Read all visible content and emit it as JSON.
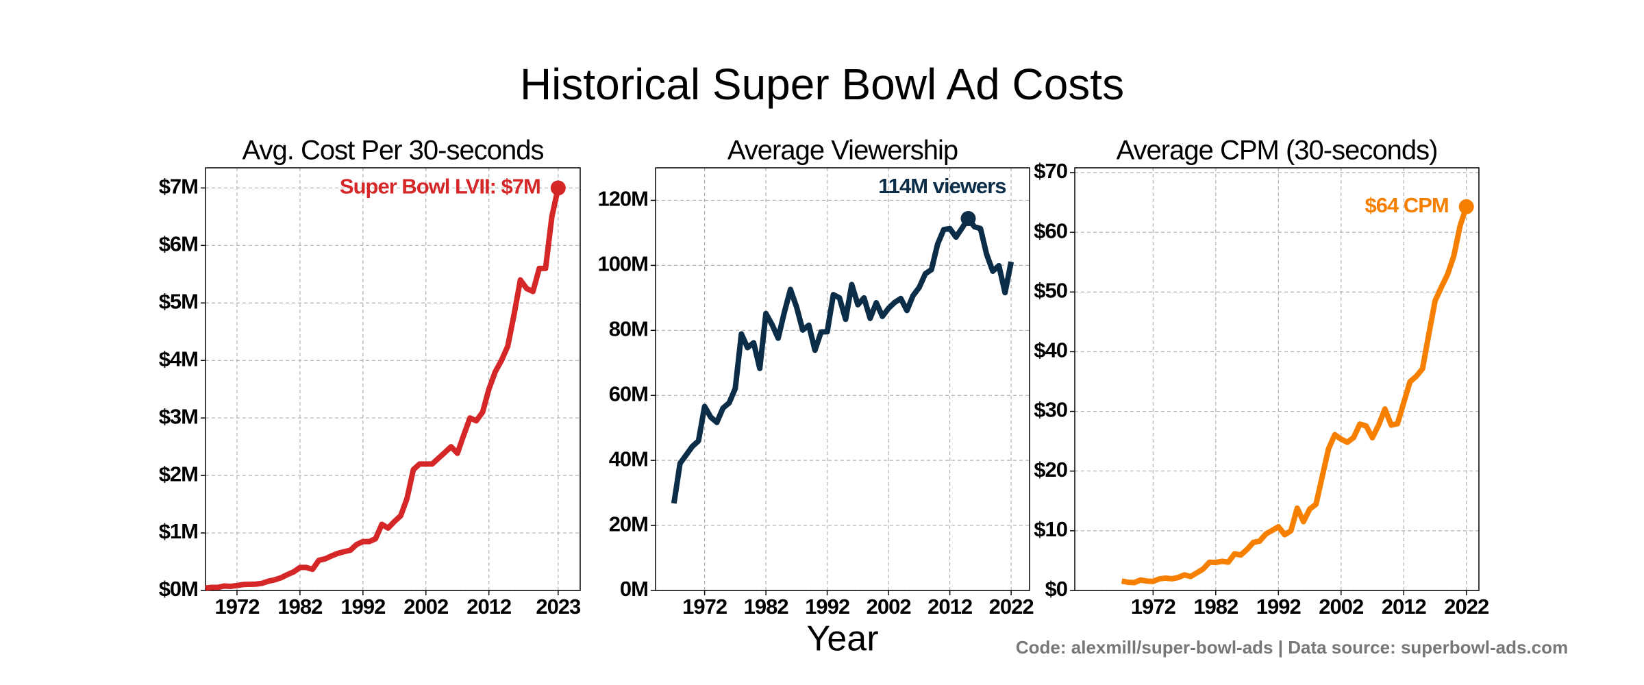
{
  "title": "Historical Super Bowl Ad Costs",
  "xlabel": "Year",
  "footer": "Code: alexmill/super-bowl-ads  |  Data source: superbowl-ads.com",
  "chart_data": [
    {
      "type": "line",
      "title": "Avg. Cost Per 30-seconds",
      "color": "#d62728",
      "grid": true,
      "x": [
        1967,
        1968,
        1969,
        1970,
        1971,
        1972,
        1973,
        1974,
        1975,
        1976,
        1977,
        1978,
        1979,
        1980,
        1981,
        1982,
        1983,
        1984,
        1985,
        1986,
        1987,
        1988,
        1989,
        1990,
        1991,
        1992,
        1993,
        1994,
        1995,
        1996,
        1997,
        1998,
        1999,
        2000,
        2001,
        2002,
        2003,
        2004,
        2005,
        2006,
        2007,
        2008,
        2009,
        2010,
        2011,
        2012,
        2013,
        2014,
        2015,
        2016,
        2017,
        2018,
        2019,
        2020,
        2021,
        2022,
        2023
      ],
      "values": [
        0.042,
        0.054,
        0.055,
        0.078,
        0.072,
        0.086,
        0.1035,
        0.107,
        0.11,
        0.125,
        0.162,
        0.185,
        0.222,
        0.275,
        0.324,
        0.4,
        0.4,
        0.368,
        0.525,
        0.55,
        0.6,
        0.645,
        0.675,
        0.7,
        0.8,
        0.85,
        0.85,
        0.9,
        1.15,
        1.085,
        1.2,
        1.3,
        1.6,
        2.1,
        2.2,
        2.2,
        2.2,
        2.3,
        2.4,
        2.5,
        2.385,
        2.7,
        3.0,
        2.95,
        3.1,
        3.5,
        3.8,
        4.0,
        4.25,
        4.8,
        5.4,
        5.25,
        5.2,
        5.6,
        5.6,
        6.5,
        7.0
      ],
      "xlim": [
        1967,
        2026.5
      ],
      "ylim": [
        0,
        7.35
      ],
      "xticks": [
        1972,
        1982,
        1992,
        2002,
        2012,
        2023
      ],
      "yticks": [
        {
          "value": 0,
          "label": "$0M"
        },
        {
          "value": 1,
          "label": "$1M"
        },
        {
          "value": 2,
          "label": "$2M"
        },
        {
          "value": 3,
          "label": "$3M"
        },
        {
          "value": 4,
          "label": "$4M"
        },
        {
          "value": 5,
          "label": "$5M"
        },
        {
          "value": 6,
          "label": "$6M"
        },
        {
          "value": 7,
          "label": "$7M"
        }
      ],
      "annotation": {
        "text": "Super Bowl LVII: $7M",
        "x": 2023,
        "y": 7.0
      }
    },
    {
      "type": "line",
      "title": "Average Viewership",
      "color": "#0b2d48",
      "grid": true,
      "x": [
        1967,
        1968,
        1969,
        1970,
        1971,
        1972,
        1973,
        1974,
        1975,
        1976,
        1977,
        1978,
        1979,
        1980,
        1981,
        1982,
        1983,
        1984,
        1985,
        1986,
        1987,
        1988,
        1989,
        1990,
        1991,
        1992,
        1993,
        1994,
        1995,
        1996,
        1997,
        1998,
        1999,
        2000,
        2001,
        2002,
        2003,
        2004,
        2005,
        2006,
        2007,
        2008,
        2009,
        2010,
        2011,
        2012,
        2013,
        2014,
        2015,
        2016,
        2017,
        2018,
        2019,
        2020,
        2021,
        2022
      ],
      "values": [
        26.8,
        39.1,
        41.7,
        44.3,
        46.0,
        56.6,
        53.3,
        51.7,
        56.1,
        57.7,
        62.1,
        78.9,
        74.7,
        76.2,
        68.3,
        85.2,
        81.8,
        77.6,
        85.5,
        92.6,
        87.2,
        80.1,
        81.6,
        73.9,
        79.5,
        79.6,
        91.0,
        90.0,
        83.4,
        94.1,
        87.9,
        90.0,
        83.7,
        88.5,
        84.3,
        86.8,
        88.6,
        89.8,
        86.1,
        90.7,
        93.2,
        97.4,
        98.7,
        106.5,
        111.0,
        111.3,
        108.7,
        111.5,
        114.4,
        111.9,
        111.3,
        103.4,
        98.2,
        99.9,
        91.6,
        101.1
      ],
      "xlim": [
        1964,
        2025
      ],
      "ylim": [
        0,
        130
      ],
      "xticks": [
        1972,
        1982,
        1992,
        2002,
        2012,
        2022
      ],
      "yticks": [
        {
          "value": 0,
          "label": "0M"
        },
        {
          "value": 20,
          "label": "20M"
        },
        {
          "value": 40,
          "label": "40M"
        },
        {
          "value": 60,
          "label": "60M"
        },
        {
          "value": 80,
          "label": "80M"
        },
        {
          "value": 100,
          "label": "100M"
        },
        {
          "value": 120,
          "label": "120M"
        }
      ],
      "annotation": {
        "text": "114M viewers",
        "x": 2015,
        "y": 114.4
      }
    },
    {
      "type": "line",
      "title": "Average CPM (30-seconds)",
      "color": "#f77f00",
      "grid": true,
      "x": [
        1967,
        1968,
        1969,
        1970,
        1971,
        1972,
        1973,
        1974,
        1975,
        1976,
        1977,
        1978,
        1979,
        1980,
        1981,
        1982,
        1983,
        1984,
        1985,
        1986,
        1987,
        1988,
        1989,
        1990,
        1991,
        1992,
        1993,
        1994,
        1995,
        1996,
        1997,
        1998,
        1999,
        2000,
        2001,
        2002,
        2003,
        2004,
        2005,
        2006,
        2007,
        2008,
        2009,
        2010,
        2011,
        2012,
        2013,
        2014,
        2015,
        2016,
        2017,
        2018,
        2019,
        2020,
        2021,
        2022
      ],
      "values": [
        1.57,
        1.38,
        1.32,
        1.76,
        1.57,
        1.52,
        1.94,
        2.07,
        1.96,
        2.17,
        2.61,
        2.34,
        2.97,
        3.61,
        4.74,
        4.69,
        4.89,
        4.74,
        6.14,
        5.94,
        6.88,
        8.05,
        8.27,
        9.47,
        10.06,
        10.68,
        9.34,
        10.0,
        13.79,
        11.53,
        13.65,
        14.44,
        19.12,
        23.73,
        26.1,
        25.35,
        24.83,
        25.61,
        27.87,
        27.56,
        25.59,
        27.72,
        30.4,
        27.7,
        27.93,
        31.45,
        34.96,
        35.87,
        37.15,
        42.9,
        48.5,
        50.8,
        52.95,
        56.06,
        61.1,
        64.29
      ],
      "xlim": [
        1959.5,
        2024
      ],
      "ylim": [
        0,
        70.8
      ],
      "xticks": [
        1972,
        1982,
        1992,
        2002,
        2012,
        2022
      ],
      "yticks": [
        {
          "value": 0,
          "label": "$0"
        },
        {
          "value": 10,
          "label": "$10"
        },
        {
          "value": 20,
          "label": "$20"
        },
        {
          "value": 30,
          "label": "$30"
        },
        {
          "value": 40,
          "label": "$40"
        },
        {
          "value": 50,
          "label": "$50"
        },
        {
          "value": 60,
          "label": "$60"
        },
        {
          "value": 70,
          "label": "$70"
        }
      ],
      "annotation": {
        "text": "$64 CPM",
        "x": 2022,
        "y": 64.29
      }
    }
  ]
}
